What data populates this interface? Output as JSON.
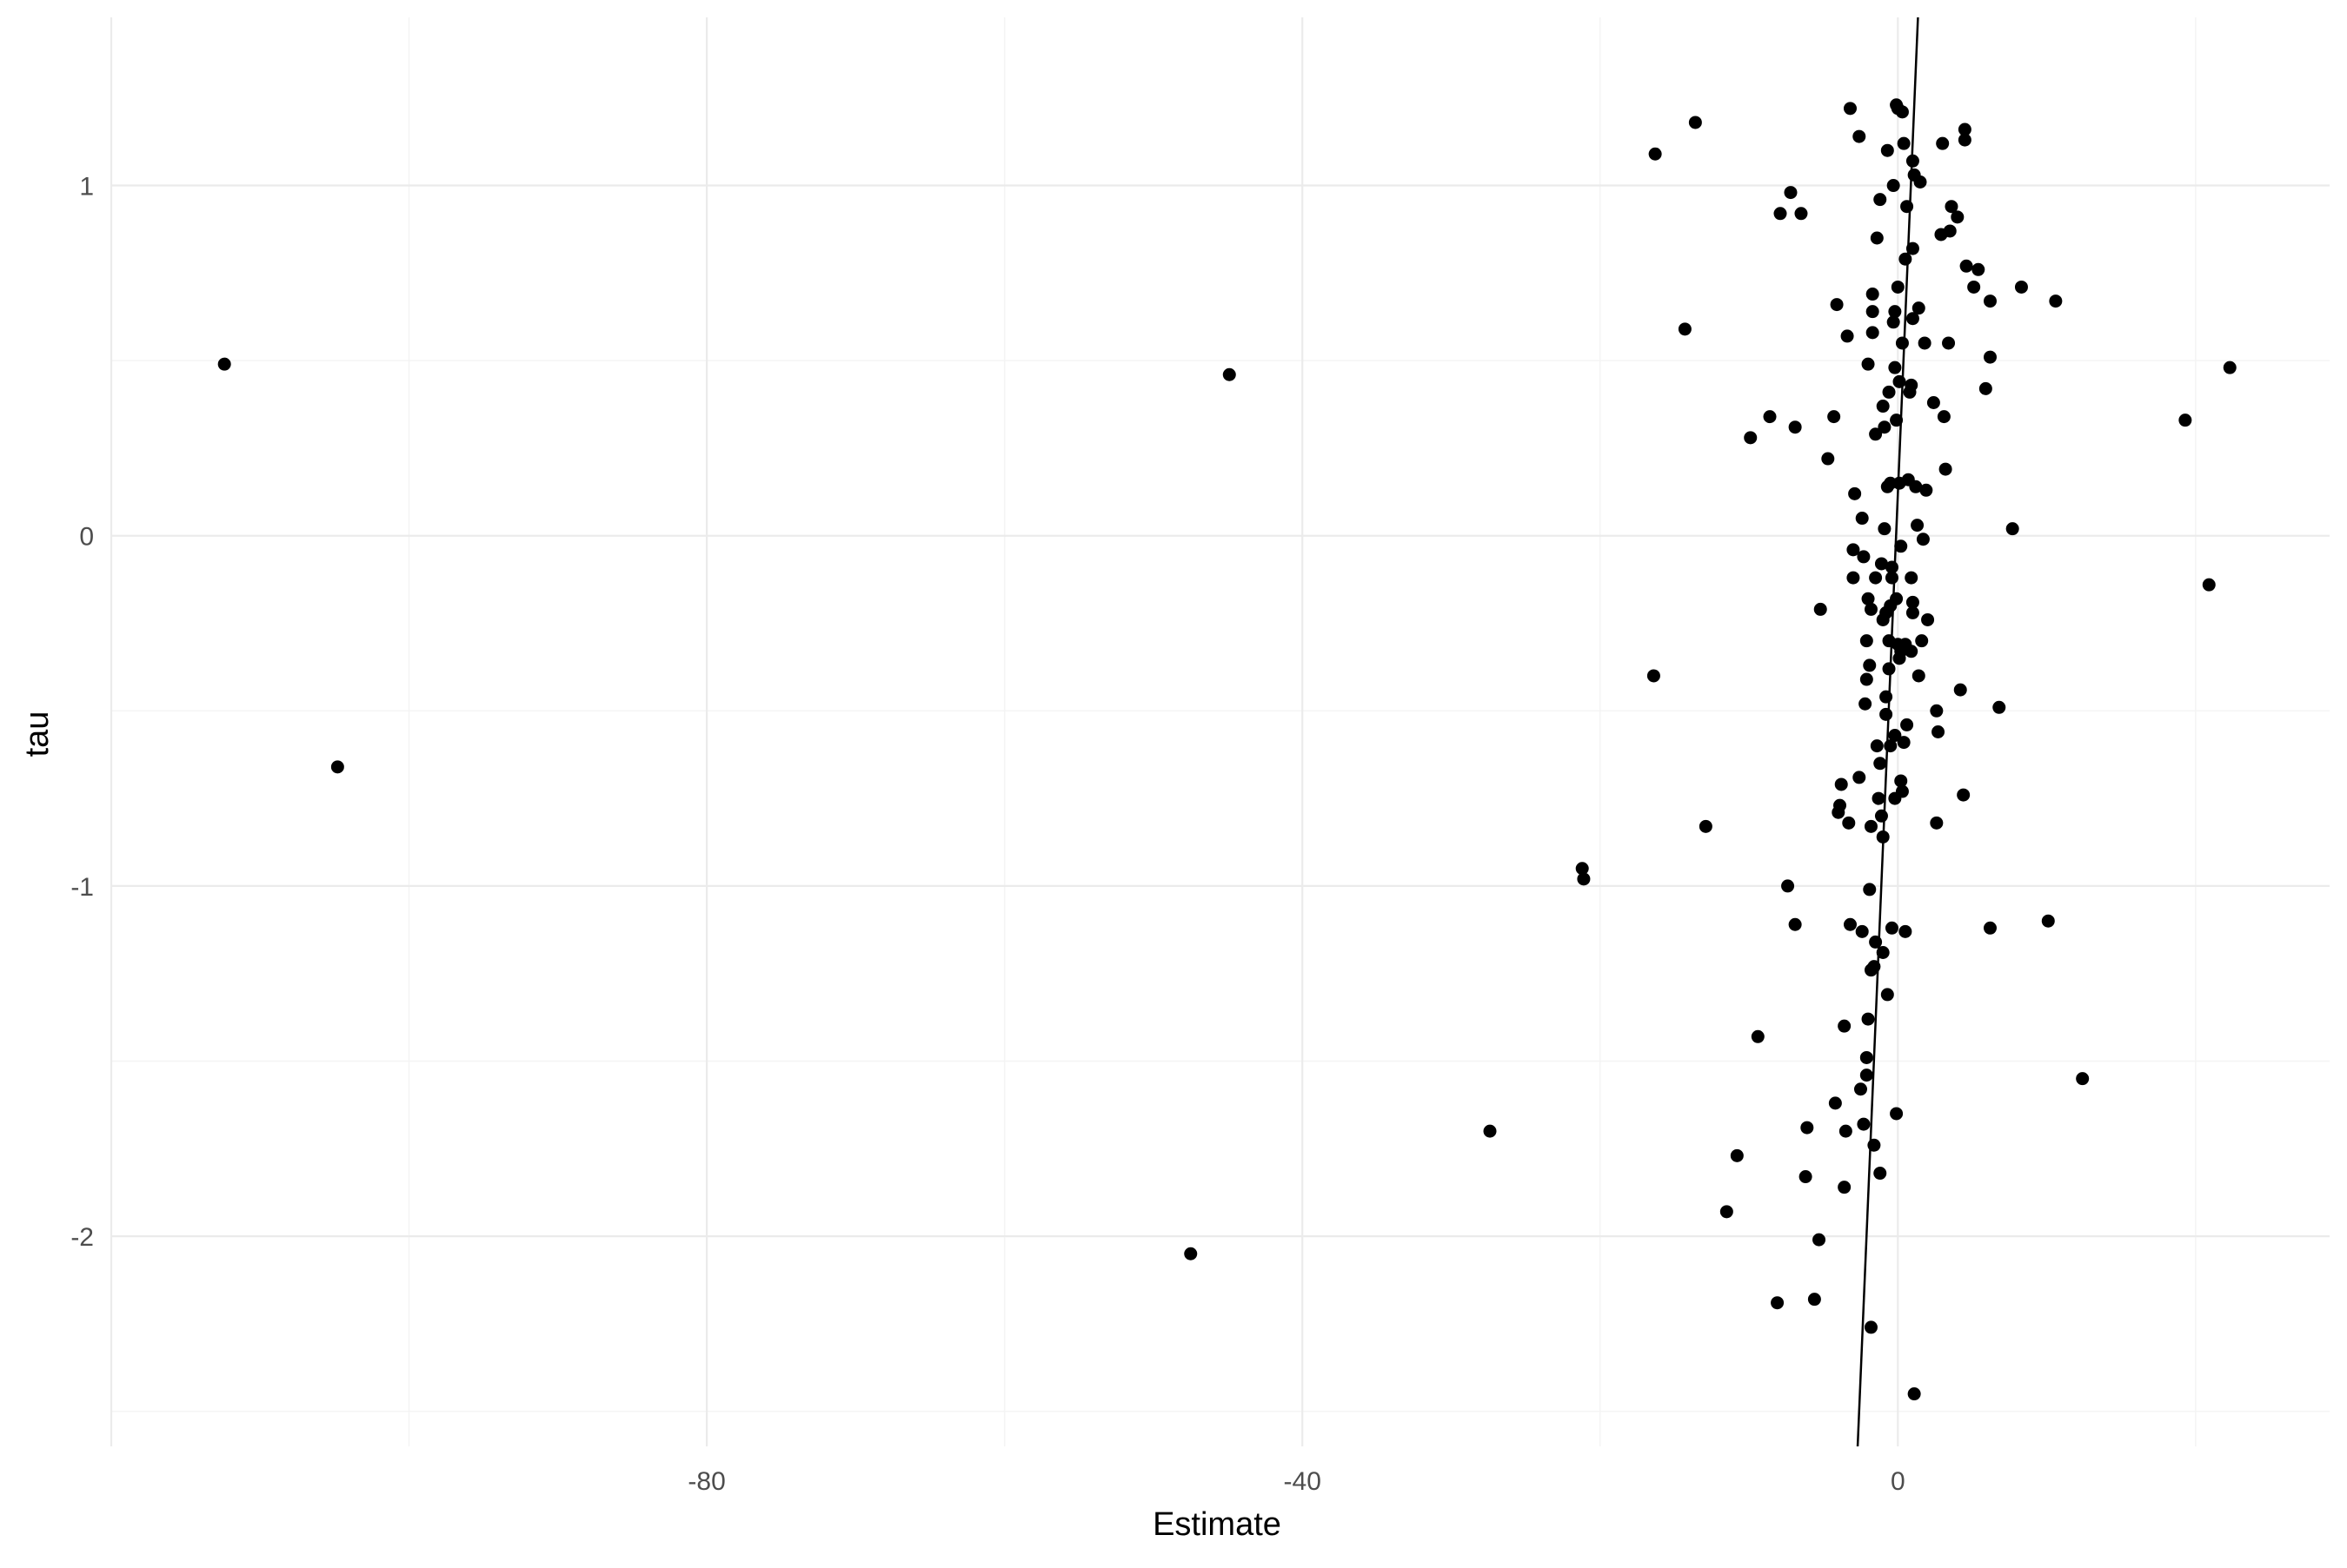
{
  "chart_data": {
    "type": "scatter",
    "title": "",
    "xlabel": "Estimate",
    "ylabel": "tau",
    "xlim": [
      -120,
      29
    ],
    "ylim": [
      -2.6,
      1.48
    ],
    "x_ticks": [
      -80,
      -40,
      0
    ],
    "x_tick_labels": [
      "-80",
      "-40",
      "0"
    ],
    "y_ticks": [
      -2,
      -1,
      0,
      1
    ],
    "y_tick_labels": [
      "-2",
      "-1",
      "0",
      "1"
    ],
    "grid": true,
    "legend": "none",
    "colors": {
      "point": "#000000",
      "line": "#000000",
      "grid_major": "#ebebeb",
      "grid_minor": "#f4f4f4",
      "text": "#4d4d4d",
      "title_text": "#000000"
    },
    "reference_line": {
      "x1": -2.7,
      "y1": -2.6,
      "x2": 1.35,
      "y2": 1.48
    },
    "points": [
      [
        -112.4,
        0.49
      ],
      [
        -104.8,
        -0.66
      ],
      [
        -44.9,
        0.46
      ],
      [
        -47.5,
        -2.05
      ],
      [
        -27.4,
        -1.7
      ],
      [
        -21.2,
        -0.95
      ],
      [
        -21.1,
        -0.98
      ],
      [
        -16.3,
        1.09
      ],
      [
        -13.6,
        1.18
      ],
      [
        -14.3,
        0.59
      ],
      [
        -16.4,
        -0.4
      ],
      [
        -12.9,
        -0.83
      ],
      [
        -10.8,
        -1.77
      ],
      [
        -11.5,
        -1.93
      ],
      [
        -9.4,
        -1.43
      ],
      [
        -9.9,
        0.28
      ],
      [
        -8.6,
        0.34
      ],
      [
        -7.9,
        0.92
      ],
      [
        -7.2,
        0.98
      ],
      [
        -6.5,
        0.92
      ],
      [
        -7.4,
        -1.0
      ],
      [
        -6.9,
        -1.11
      ],
      [
        -6.9,
        0.31
      ],
      [
        -6.1,
        -1.69
      ],
      [
        -6.2,
        -1.83
      ],
      [
        -5.6,
        -2.18
      ],
      [
        -8.1,
        -2.19
      ],
      [
        -5.2,
        -0.21
      ],
      [
        -5.3,
        -2.01
      ],
      [
        -4.7,
        0.22
      ],
      [
        -4.3,
        0.34
      ],
      [
        -4.2,
        -1.62
      ],
      [
        -4.1,
        0.66
      ],
      [
        -3.9,
        -0.77
      ],
      [
        -4.0,
        -0.79
      ],
      [
        -3.8,
        -0.71
      ],
      [
        -3.6,
        -1.4
      ],
      [
        -3.5,
        -1.7
      ],
      [
        -3.6,
        -1.86
      ],
      [
        -3.4,
        0.57
      ],
      [
        -3.3,
        -0.82
      ],
      [
        -3.2,
        -1.11
      ],
      [
        -3.0,
        -0.04
      ],
      [
        -3.0,
        -0.12
      ],
      [
        -3.2,
        1.22
      ],
      [
        -2.9,
        0.12
      ],
      [
        -2.6,
        -0.69
      ],
      [
        -2.5,
        -1.58
      ],
      [
        -2.6,
        1.14
      ],
      [
        -2.4,
        0.05
      ],
      [
        -2.3,
        -0.06
      ],
      [
        -2.4,
        -1.13
      ],
      [
        -2.2,
        -0.48
      ],
      [
        -2.1,
        -0.41
      ],
      [
        -2.1,
        -0.3
      ],
      [
        -2.0,
        -0.18
      ],
      [
        -2.1,
        -1.49
      ],
      [
        -2.1,
        -1.54
      ],
      [
        -2.0,
        -1.38
      ],
      [
        -2.3,
        -1.68
      ],
      [
        -1.9,
        -1.01
      ],
      [
        -1.9,
        -0.37
      ],
      [
        -2.0,
        0.49
      ],
      [
        -1.8,
        -0.21
      ],
      [
        -1.8,
        -0.83
      ],
      [
        -1.8,
        -1.24
      ],
      [
        -1.8,
        -2.26
      ],
      [
        -1.7,
        0.58
      ],
      [
        -1.7,
        0.64
      ],
      [
        -1.7,
        0.69
      ],
      [
        -1.6,
        -1.74
      ],
      [
        -1.6,
        -1.23
      ],
      [
        -1.5,
        -0.12
      ],
      [
        -1.5,
        0.29
      ],
      [
        -1.5,
        -1.16
      ],
      [
        -1.4,
        0.85
      ],
      [
        -1.4,
        -0.6
      ],
      [
        -1.3,
        -0.75
      ],
      [
        -1.2,
        0.96
      ],
      [
        -1.2,
        -0.65
      ],
      [
        -1.2,
        -1.82
      ],
      [
        -1.1,
        -0.08
      ],
      [
        -1.1,
        -0.8
      ],
      [
        -1.0,
        -1.19
      ],
      [
        -1.0,
        -0.86
      ],
      [
        -1.0,
        -0.24
      ],
      [
        -1.0,
        0.37
      ],
      [
        -0.9,
        0.02
      ],
      [
        -0.9,
        0.31
      ],
      [
        -0.8,
        -0.51
      ],
      [
        -0.8,
        -0.22
      ],
      [
        -0.8,
        -0.46
      ],
      [
        -0.7,
        0.14
      ],
      [
        -0.7,
        1.1
      ],
      [
        -0.7,
        -1.31
      ],
      [
        -0.6,
        -0.38
      ],
      [
        -0.6,
        0.41
      ],
      [
        -0.6,
        -0.3
      ],
      [
        -0.5,
        -0.6
      ],
      [
        -0.5,
        -0.2
      ],
      [
        -0.5,
        0.15
      ],
      [
        -0.4,
        -0.09
      ],
      [
        -0.4,
        -0.12
      ],
      [
        -0.4,
        -1.12
      ],
      [
        -0.3,
        0.61
      ],
      [
        -0.3,
        1.0
      ],
      [
        -0.2,
        0.64
      ],
      [
        -0.2,
        -0.57
      ],
      [
        -0.2,
        -0.75
      ],
      [
        -0.2,
        0.48
      ],
      [
        -0.1,
        1.23
      ],
      [
        -0.1,
        0.33
      ],
      [
        -0.1,
        -0.18
      ],
      [
        -0.1,
        -1.65
      ],
      [
        0.0,
        -0.31
      ],
      [
        0.0,
        1.22
      ],
      [
        0.0,
        0.71
      ],
      [
        0.1,
        0.15
      ],
      [
        0.1,
        -0.35
      ],
      [
        0.1,
        0.44
      ],
      [
        0.2,
        -0.7
      ],
      [
        0.2,
        -0.03
      ],
      [
        0.2,
        -0.33
      ],
      [
        0.3,
        0.55
      ],
      [
        0.3,
        -0.73
      ],
      [
        0.3,
        1.21
      ],
      [
        0.4,
        1.12
      ],
      [
        0.4,
        -0.59
      ],
      [
        0.5,
        -0.31
      ],
      [
        0.5,
        -1.13
      ],
      [
        0.5,
        0.79
      ],
      [
        0.6,
        -0.54
      ],
      [
        0.6,
        0.94
      ],
      [
        0.7,
        0.16
      ],
      [
        0.8,
        0.41
      ],
      [
        0.9,
        0.43
      ],
      [
        0.9,
        -0.33
      ],
      [
        0.9,
        -0.12
      ],
      [
        1.0,
        -0.19
      ],
      [
        1.0,
        -0.22
      ],
      [
        1.0,
        0.62
      ],
      [
        1.0,
        1.07
      ],
      [
        1.0,
        0.82
      ],
      [
        1.1,
        1.03
      ],
      [
        1.1,
        -2.45
      ],
      [
        1.2,
        0.14
      ],
      [
        1.3,
        0.03
      ],
      [
        1.4,
        0.65
      ],
      [
        1.4,
        -0.4
      ],
      [
        1.5,
        1.01
      ],
      [
        1.6,
        -0.3
      ],
      [
        1.7,
        -0.01
      ],
      [
        1.8,
        0.55
      ],
      [
        1.9,
        0.13
      ],
      [
        2.0,
        -0.24
      ],
      [
        2.4,
        0.38
      ],
      [
        2.6,
        -0.5
      ],
      [
        2.6,
        -0.82
      ],
      [
        2.7,
        -0.56
      ],
      [
        2.9,
        0.86
      ],
      [
        3.0,
        1.12
      ],
      [
        3.1,
        0.34
      ],
      [
        3.2,
        0.19
      ],
      [
        3.4,
        0.55
      ],
      [
        3.5,
        0.87
      ],
      [
        3.6,
        0.94
      ],
      [
        4.0,
        0.91
      ],
      [
        4.2,
        -0.44
      ],
      [
        4.4,
        -0.74
      ],
      [
        4.5,
        1.16
      ],
      [
        4.5,
        1.13
      ],
      [
        4.6,
        0.77
      ],
      [
        5.1,
        0.71
      ],
      [
        5.4,
        0.76
      ],
      [
        5.9,
        0.42
      ],
      [
        6.2,
        0.67
      ],
      [
        6.2,
        -1.12
      ],
      [
        6.2,
        0.51
      ],
      [
        6.8,
        -0.49
      ],
      [
        7.7,
        0.02
      ],
      [
        8.3,
        0.71
      ],
      [
        10.1,
        -1.1
      ],
      [
        10.6,
        0.67
      ],
      [
        12.4,
        -1.55
      ],
      [
        19.3,
        0.33
      ],
      [
        20.9,
        -0.14
      ],
      [
        22.3,
        0.48
      ]
    ]
  }
}
